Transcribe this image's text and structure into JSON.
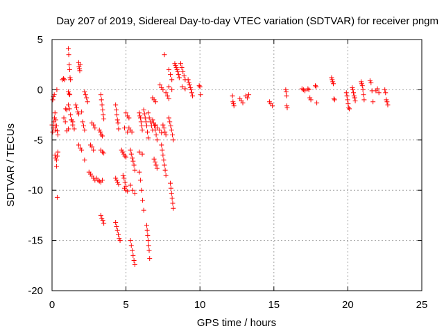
{
  "chart_data": {
    "type": "scatter",
    "title": "Day 207 of 2019, Sidereal Day-to-day VTEC variation (SDTVAR) for receiver pngm",
    "xlabel": "GPS time / hours",
    "ylabel": "SDTVAR / TECUs",
    "xlim": [
      0,
      25
    ],
    "ylim": [
      -20,
      5
    ],
    "xticks": [
      0,
      5,
      10,
      15,
      20,
      25
    ],
    "yticks": [
      -20,
      -15,
      -10,
      -5,
      0,
      5
    ],
    "xtick_labels": [
      "0",
      "5",
      "10",
      "15",
      "20",
      "25"
    ],
    "ytick_labels": [
      "-20",
      "-15",
      "-10",
      "-5",
      "0",
      "5"
    ],
    "grid": true,
    "marker": "+",
    "color": "#ff0000",
    "series": [
      {
        "name": "SDTVAR",
        "tracks": [
          {
            "x0": 0.0,
            "x1": 0.25,
            "y": [
              -3.5,
              -4.2,
              -3.8,
              -3.2,
              -2.8,
              -3.6,
              -4.0
            ]
          },
          {
            "x0": 0.05,
            "x1": 0.15,
            "y": [
              -1.0,
              -0.7,
              -0.5
            ]
          },
          {
            "x0": 0.2,
            "x1": 0.4,
            "y": [
              -2.3,
              -3.0,
              -3.6,
              -4.1,
              -4.5
            ]
          },
          {
            "x0": 0.2,
            "x1": 0.4,
            "y": [
              -6.5,
              -6.8,
              -7.0,
              -6.6,
              -6.2
            ]
          },
          {
            "x0": 0.3,
            "x1": 0.35,
            "y": [
              -7.6,
              0.0,
              -10.7
            ]
          },
          {
            "x0": 0.7,
            "x1": 1.0,
            "y": [
              1.0,
              1.1,
              1.0,
              -1.9,
              -2.0
            ]
          },
          {
            "x0": 0.8,
            "x1": 1.1,
            "y": [
              -2.8,
              -3.2,
              -4.1,
              -3.9
            ]
          },
          {
            "x0": 1.1,
            "x1": 1.25,
            "y": [
              4.1,
              3.5,
              2.5,
              2.0,
              1.2,
              1.0
            ]
          },
          {
            "x0": 1.1,
            "x1": 1.2,
            "y": [
              -0.2,
              -0.4,
              -0.5
            ]
          },
          {
            "x0": 1.1,
            "x1": 1.4,
            "y": [
              -1.5,
              -1.9,
              -2.5,
              -3.0,
              -3.2
            ]
          },
          {
            "x0": 1.3,
            "x1": 1.5,
            "y": [
              -3.0,
              -3.5,
              -3.9
            ]
          },
          {
            "x0": 1.6,
            "x1": 1.8,
            "y": [
              -1.5,
              -1.8,
              -2.2,
              -2.4
            ]
          },
          {
            "x0": 1.8,
            "x1": 1.9,
            "y": [
              2.7,
              2.3,
              2.1,
              1.9,
              2.5
            ]
          },
          {
            "x0": 1.8,
            "x1": 2.0,
            "y": [
              -5.5,
              -5.8,
              -6.0
            ]
          },
          {
            "x0": 2.0,
            "x1": 2.2,
            "y": [
              -2.2,
              -3.2,
              -3.6,
              -4.0
            ]
          },
          {
            "x0": 2.2,
            "x1": 2.4,
            "y": [
              -0.2,
              -0.5,
              -0.8,
              -1.2
            ]
          },
          {
            "x0": 2.2,
            "x1": 2.3,
            "y": [
              -7.0
            ]
          },
          {
            "x0": 2.5,
            "x1": 2.9,
            "y": [
              -8.2,
              -8.4,
              -8.6,
              -8.8,
              -9.0
            ]
          },
          {
            "x0": 2.6,
            "x1": 2.8,
            "y": [
              -5.5,
              -5.7,
              -6.0
            ]
          },
          {
            "x0": 2.7,
            "x1": 2.9,
            "y": [
              -3.3,
              -3.5,
              -3.8
            ]
          },
          {
            "x0": 3.0,
            "x1": 3.4,
            "y": [
              -8.8,
              -9.0,
              -9.1,
              -9.2,
              -9.0
            ]
          },
          {
            "x0": 3.2,
            "x1": 3.4,
            "y": [
              -4.0,
              -4.2,
              -4.5,
              -4.6
            ]
          },
          {
            "x0": 3.3,
            "x1": 3.5,
            "y": [
              -0.5,
              -1.0,
              -1.5,
              -2.0,
              -2.5,
              -2.9
            ]
          },
          {
            "x0": 3.3,
            "x1": 3.5,
            "y": [
              -6.0,
              -6.2,
              -6.3
            ]
          },
          {
            "x0": 3.3,
            "x1": 3.5,
            "y": [
              -12.5,
              -12.8,
              -13.0,
              -13.3
            ]
          },
          {
            "x0": 4.3,
            "x1": 4.5,
            "y": [
              -1.5,
              -2.0,
              -2.5,
              -3.0,
              -3.3,
              -3.9
            ]
          },
          {
            "x0": 4.3,
            "x1": 4.5,
            "y": [
              -8.8,
              -9.0,
              -9.2,
              -9.4
            ]
          },
          {
            "x0": 4.3,
            "x1": 4.6,
            "y": [
              -13.2,
              -13.6,
              -14.0,
              -14.4,
              -14.8,
              -15.0
            ]
          },
          {
            "x0": 4.7,
            "x1": 5.0,
            "y": [
              -6.0,
              -6.2,
              -6.4,
              -6.6,
              -6.7
            ]
          },
          {
            "x0": 4.8,
            "x1": 5.0,
            "y": [
              -8.5,
              -8.8,
              -9.2,
              -9.6
            ]
          },
          {
            "x0": 4.9,
            "x1": 5.1,
            "y": [
              -9.8,
              -10.0,
              -10.1
            ]
          },
          {
            "x0": 4.9,
            "x1": 5.1,
            "y": [
              -3.8,
              -4.2
            ]
          },
          {
            "x0": 5.0,
            "x1": 5.2,
            "y": [
              -2.3,
              -2.6,
              -2.8
            ]
          },
          {
            "x0": 5.2,
            "x1": 5.4,
            "y": [
              -3.8,
              -4.0,
              -4.2
            ]
          },
          {
            "x0": 5.3,
            "x1": 5.6,
            "y": [
              -6.0,
              -6.4,
              -6.8,
              -7.1,
              -7.5,
              -8.0
            ]
          },
          {
            "x0": 5.3,
            "x1": 5.6,
            "y": [
              -9.5,
              -10.0,
              -10.3
            ]
          },
          {
            "x0": 5.3,
            "x1": 5.6,
            "y": [
              -15.0,
              -15.5,
              -16.0,
              -16.5,
              -17.0,
              -17.4
            ]
          },
          {
            "x0": 5.9,
            "x1": 6.1,
            "y": [
              -2.3,
              -2.6,
              -2.8,
              -3.2,
              -3.6,
              -4.0
            ]
          },
          {
            "x0": 5.9,
            "x1": 6.2,
            "y": [
              -8.2,
              -9.0,
              -10.0,
              -11.0,
              -12.0
            ]
          },
          {
            "x0": 5.9,
            "x1": 6.1,
            "y": [
              -6.2,
              -6.4
            ]
          },
          {
            "x0": 6.2,
            "x1": 6.5,
            "y": [
              -2.0,
              -2.4,
              -2.8,
              -3.2,
              -3.6,
              -4.2,
              -4.8
            ]
          },
          {
            "x0": 6.4,
            "x1": 6.6,
            "y": [
              -13.5,
              -14.0,
              -14.5,
              -15.0,
              -15.5,
              -16.0,
              -16.8
            ]
          },
          {
            "x0": 6.5,
            "x1": 6.8,
            "y": [
              -2.3,
              -2.8,
              -3.2,
              -3.6,
              -4.0
            ]
          },
          {
            "x0": 6.8,
            "x1": 7.0,
            "y": [
              -0.8,
              -1.0,
              -1.2
            ]
          },
          {
            "x0": 6.8,
            "x1": 7.1,
            "y": [
              -3.0,
              -3.3,
              -3.6,
              -4.0,
              -4.5,
              -5.0
            ]
          },
          {
            "x0": 6.9,
            "x1": 7.1,
            "y": [
              -6.9,
              -7.2,
              -7.5,
              -7.8
            ]
          },
          {
            "x0": 7.0,
            "x1": 7.4,
            "y": [
              -3.5,
              -3.8,
              -4.0,
              -4.3
            ]
          },
          {
            "x0": 7.3,
            "x1": 7.5,
            "y": [
              0.5,
              0.2,
              0.0
            ]
          },
          {
            "x0": 7.4,
            "x1": 7.7,
            "y": [
              -5.5,
              -6.0,
              -6.5,
              -7.0,
              -7.5,
              -8.0,
              -8.5
            ]
          },
          {
            "x0": 7.5,
            "x1": 7.7,
            "y": [
              -3.5,
              -3.8,
              -4.2,
              -4.5
            ]
          },
          {
            "x0": 7.6,
            "x1": 7.7,
            "y": [
              3.5
            ]
          },
          {
            "x0": 7.7,
            "x1": 7.9,
            "y": [
              -0.3,
              -0.6,
              -0.9
            ]
          },
          {
            "x0": 7.9,
            "x1": 8.1,
            "y": [
              2.0,
              1.5,
              1.0
            ]
          },
          {
            "x0": 7.9,
            "x1": 8.1,
            "y": [
              0.3,
              0.0
            ]
          },
          {
            "x0": 7.9,
            "x1": 8.2,
            "y": [
              -2.8,
              -3.2,
              -3.6,
              -4.0,
              -4.5,
              -5.0
            ]
          },
          {
            "x0": 8.0,
            "x1": 8.2,
            "y": [
              -9.3,
              -9.8,
              -10.3,
              -10.8,
              -11.3,
              -11.8
            ]
          },
          {
            "x0": 8.3,
            "x1": 8.6,
            "y": [
              2.6,
              2.4,
              2.2,
              2.0,
              1.8,
              1.5,
              1.2
            ]
          },
          {
            "x0": 8.7,
            "x1": 9.0,
            "y": [
              2.6,
              2.2,
              1.8,
              1.4,
              1.0
            ]
          },
          {
            "x0": 8.8,
            "x1": 9.0,
            "y": [
              0.3,
              0.1
            ]
          },
          {
            "x0": 9.2,
            "x1": 9.5,
            "y": [
              1.0,
              0.7,
              0.5,
              0.2,
              0.0,
              -0.3,
              -0.6
            ]
          },
          {
            "x0": 9.95,
            "x1": 10.05,
            "y": [
              0.4,
              0.3,
              -0.5
            ]
          },
          {
            "x0": 12.2,
            "x1": 12.3,
            "y": [
              -0.6,
              -1.2,
              -1.4,
              -1.6
            ]
          },
          {
            "x0": 12.7,
            "x1": 12.9,
            "y": [
              -0.9,
              -1.1,
              -1.3
            ]
          },
          {
            "x0": 13.1,
            "x1": 13.3,
            "y": [
              -0.6,
              -0.8,
              -0.5
            ]
          },
          {
            "x0": 14.7,
            "x1": 14.9,
            "y": [
              -1.2,
              -1.4,
              -1.6
            ]
          },
          {
            "x0": 15.8,
            "x1": 15.9,
            "y": [
              0.0,
              -0.2,
              -0.6,
              -1.6,
              -1.8
            ]
          },
          {
            "x0": 16.9,
            "x1": 17.1,
            "y": [
              0.1,
              0.0,
              -0.1
            ]
          },
          {
            "x0": 17.3,
            "x1": 17.5,
            "y": [
              0.1,
              0.0,
              -0.8,
              -1.0
            ]
          },
          {
            "x0": 17.8,
            "x1": 17.9,
            "y": [
              0.4,
              0.3,
              -1.3
            ]
          },
          {
            "x0": 18.9,
            "x1": 19.1,
            "y": [
              1.2,
              1.0,
              0.8,
              0.6,
              -0.9,
              -1.0
            ]
          },
          {
            "x0": 19.9,
            "x1": 20.1,
            "y": [
              -0.3,
              -0.6,
              -1.0,
              -1.4,
              -1.8,
              -1.9
            ]
          },
          {
            "x0": 20.3,
            "x1": 20.5,
            "y": [
              0.2,
              0.0,
              -0.3,
              -0.6,
              -0.8,
              -1.1
            ]
          },
          {
            "x0": 20.9,
            "x1": 21.1,
            "y": [
              0.8,
              0.6,
              0.4,
              0.0,
              -0.5,
              -1.0
            ]
          },
          {
            "x0": 21.5,
            "x1": 21.7,
            "y": [
              0.9,
              0.7,
              -0.1,
              -1.2
            ]
          },
          {
            "x0": 21.9,
            "x1": 22.1,
            "y": [
              -0.1,
              0.1,
              -0.3
            ]
          },
          {
            "x0": 22.5,
            "x1": 22.7,
            "y": [
              0.0,
              -0.3,
              -1.0,
              -1.2,
              -1.5
            ]
          }
        ]
      }
    ]
  }
}
